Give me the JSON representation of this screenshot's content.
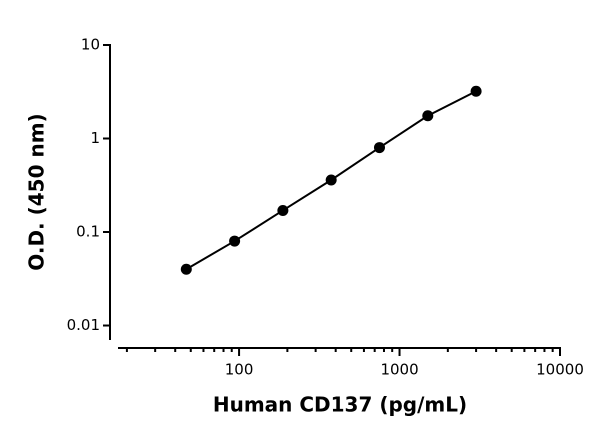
{
  "chart_data": {
    "type": "scatter",
    "x_label": "Human CD137 (pg/mL)",
    "y_label": "O.D. (450 nm)",
    "series": [
      {
        "color": "#000000",
        "x": [
          46.9,
          93.8,
          187.5,
          375,
          750,
          1500,
          3000
        ],
        "values": [
          0.04,
          0.08,
          0.17,
          0.36,
          0.8,
          1.75,
          3.2
        ]
      }
    ],
    "line": true,
    "xlog": true,
    "ylog": true,
    "xlim": [
      17.6,
      10000
    ],
    "ylim": [
      0.007,
      10
    ],
    "xticks": [
      100,
      1000,
      10000
    ],
    "yticks": [
      0.01,
      0.1,
      1,
      10
    ],
    "x_minor_ticks": true
  }
}
